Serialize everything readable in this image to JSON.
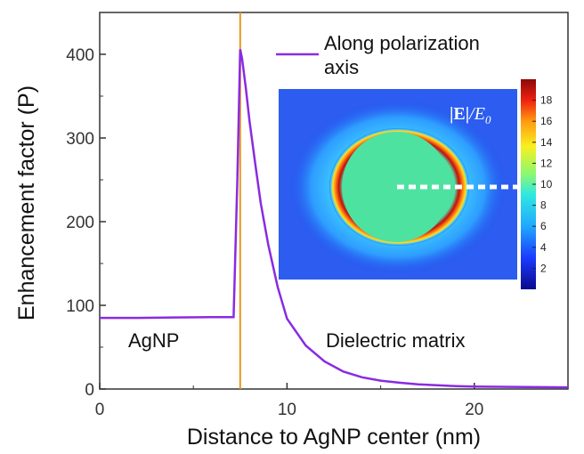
{
  "chart_data": {
    "type": "line",
    "xlabel": "Distance to AgNP center (nm)",
    "ylabel": "Enhancement factor (P)",
    "xlim": [
      0,
      25
    ],
    "ylim": [
      0,
      450
    ],
    "xticks": [
      0,
      10,
      20
    ],
    "yticks": [
      0,
      100,
      200,
      300,
      400
    ],
    "grid": false,
    "legend_position": "top-right",
    "series": [
      {
        "name": "Along polarization axis",
        "color": "#8a2be2",
        "x": [
          0,
          2,
          4,
          6,
          7.0,
          7.15,
          7.35,
          7.5,
          7.6,
          7.8,
          8,
          8.3,
          8.6,
          9,
          9.5,
          10,
          11,
          12,
          13,
          14,
          15,
          16,
          17,
          18,
          19,
          20,
          22,
          25
        ],
        "y": [
          85,
          85,
          85.5,
          86,
          86,
          86,
          250,
          406,
          395,
          360,
          320,
          270,
          222,
          172,
          122,
          84,
          52,
          33,
          21,
          14,
          10,
          7.5,
          5.5,
          4.5,
          3.5,
          3,
          2.5,
          2
        ]
      }
    ],
    "vline": {
      "x": 7.5,
      "color": "#e8981a"
    },
    "annotations": [
      "AgNP",
      "Dielectric matrix"
    ],
    "inset": {
      "label": "|E|/E0",
      "colorbar_ticks": [
        2,
        4,
        6,
        8,
        10,
        12,
        14,
        16,
        18
      ]
    }
  }
}
